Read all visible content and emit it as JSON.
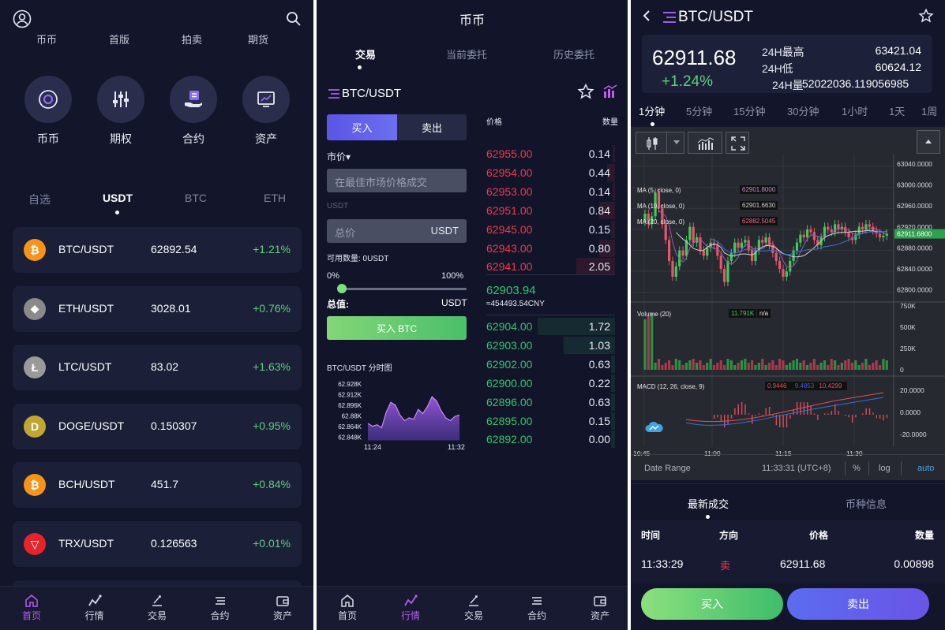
{
  "panel1": {
    "top_partial_labels": [
      "币币",
      "首版",
      "拍卖",
      "期货"
    ],
    "quick_items": [
      {
        "label": "币币",
        "icon": "coin-circle-icon"
      },
      {
        "label": "期权",
        "icon": "sliders-icon"
      },
      {
        "label": "合约",
        "icon": "hand-contract-icon"
      },
      {
        "label": "资产",
        "icon": "monitor-chart-icon"
      }
    ],
    "market_tabs": [
      {
        "label": "自选",
        "active": false
      },
      {
        "label": "USDT",
        "active": true
      },
      {
        "label": "BTC",
        "active": false
      },
      {
        "label": "ETH",
        "active": false
      }
    ],
    "markets": [
      {
        "pair": "BTC/USDT",
        "price": "62892.54",
        "change": "+1.21%",
        "icon_color": "#f7931a",
        "symbol": "₿"
      },
      {
        "pair": "ETH/USDT",
        "price": "3028.01",
        "change": "+0.76%",
        "icon_color": "#8a8a8a",
        "symbol": "◆"
      },
      {
        "pair": "LTC/USDT",
        "price": "83.02",
        "change": "+1.63%",
        "icon_color": "#9a9a9a",
        "symbol": "Ł"
      },
      {
        "pair": "DOGE/USDT",
        "price": "0.150307",
        "change": "+0.95%",
        "icon_color": "#c2a633",
        "symbol": "D"
      },
      {
        "pair": "BCH/USDT",
        "price": "451.7",
        "change": "+0.84%",
        "icon_color": "#f7931a",
        "symbol": "₿"
      },
      {
        "pair": "TRX/USDT",
        "price": "0.126563",
        "change": "+0.01%",
        "icon_color": "#e5242b",
        "symbol": "▽"
      }
    ],
    "tabbar": [
      {
        "label": "首页",
        "icon": "home-icon",
        "active": true
      },
      {
        "label": "行情",
        "icon": "market-icon",
        "active": false
      },
      {
        "label": "交易",
        "icon": "trade-icon",
        "active": false
      },
      {
        "label": "合约",
        "icon": "contract-icon",
        "active": false
      },
      {
        "label": "资产",
        "icon": "wallet-icon",
        "active": false
      }
    ]
  },
  "panel2": {
    "title": "币币",
    "tabs": [
      {
        "label": "交易",
        "active": true
      },
      {
        "label": "当前委托",
        "active": false
      },
      {
        "label": "历史委托",
        "active": false
      }
    ],
    "pair": "BTC/USDT",
    "buy_tab": "买入",
    "sell_tab": "卖出",
    "order_type": "市价▾",
    "price_placeholder": "在最佳市场价格成交",
    "unit_label": "USDT",
    "total_placeholder": "总价",
    "total_unit": "USDT",
    "available_label": "可用数量: 0USDT",
    "slider_min": "0%",
    "slider_max": "100%",
    "slider_value": 0,
    "total_value_label": "总值:",
    "total_value_unit": "USDT",
    "buy_button": "买入 BTC",
    "mini_chart_title": "BTC/USDT 分时图",
    "mini_chart_yticks": [
      "62.928K",
      "62.912K",
      "62.896K",
      "62.88K",
      "62.864K",
      "62.848K"
    ],
    "mini_chart_xticks": [
      "11:24",
      "11:32"
    ],
    "mini_chart_values": [
      62872,
      62868,
      62870,
      62866,
      62888,
      62902,
      62898,
      62884,
      62876,
      62880,
      62878,
      62892,
      62886,
      62896,
      62910,
      62904,
      62890,
      62880,
      62876,
      62882,
      62884
    ],
    "ob_price_header": "价格",
    "ob_qty_header": "数量",
    "asks": [
      {
        "price": "62955.00",
        "qty": "0.14"
      },
      {
        "price": "62954.00",
        "qty": "0.44"
      },
      {
        "price": "62953.00",
        "qty": "0.14"
      },
      {
        "price": "62951.00",
        "qty": "0.84"
      },
      {
        "price": "62945.00",
        "qty": "0.15"
      },
      {
        "price": "62943.00",
        "qty": "0.80"
      },
      {
        "price": "62941.00",
        "qty": "2.05"
      }
    ],
    "ask_depth": [
      0.02,
      0.06,
      0.02,
      0.12,
      0.03,
      0.12,
      0.3
    ],
    "last_price": "62903.94",
    "last_price_cny": "≈454493.54CNY",
    "bids": [
      {
        "price": "62904.00",
        "qty": "1.72"
      },
      {
        "price": "62903.00",
        "qty": "1.03"
      },
      {
        "price": "62902.00",
        "qty": "0.63"
      },
      {
        "price": "62900.00",
        "qty": "0.22"
      },
      {
        "price": "62896.00",
        "qty": "0.63"
      },
      {
        "price": "62895.00",
        "qty": "0.15"
      },
      {
        "price": "62892.00",
        "qty": "0.00"
      }
    ],
    "bid_depth": [
      0.6,
      0.4,
      0.03,
      0.03,
      0.03,
      0.03,
      0.03
    ],
    "tabbar": [
      {
        "label": "首页",
        "icon": "home-icon",
        "active": false
      },
      {
        "label": "行情",
        "icon": "market-icon",
        "active": true
      },
      {
        "label": "交易",
        "icon": "trade-icon",
        "active": false
      },
      {
        "label": "合约",
        "icon": "contract-icon",
        "active": false
      },
      {
        "label": "资产",
        "icon": "wallet-icon",
        "active": false
      }
    ]
  },
  "panel3": {
    "pair": "BTC/USDT",
    "price": "62911.68",
    "change": "+1.24%",
    "high_label": "24H最高",
    "high_value": "63421.04",
    "low_label": "24H低",
    "low_value": "60624.12",
    "vol_label": "24H量",
    "vol_value": "52022036.119056985",
    "periods": [
      {
        "label": "1分钟",
        "active": true
      },
      {
        "label": "5分钟",
        "active": false
      },
      {
        "label": "15分钟",
        "active": false
      },
      {
        "label": "30分钟",
        "active": false
      },
      {
        "label": "1小时",
        "active": false
      },
      {
        "label": "1天",
        "active": false
      },
      {
        "label": "1周",
        "active": false
      }
    ],
    "price_ticks": [
      "63040.0000",
      "63000.0000",
      "62960.0000",
      "62920.0000",
      "62880.0000",
      "62840.0000",
      "62800.0000"
    ],
    "current_tag": "62911.6800",
    "ma5_label": "MA (5, close, 0)",
    "ma5_value": "62901.8000",
    "ma10_label": "MA (10, close, 0)",
    "ma10_value": "62901.6630",
    "ma20_label": "MA (20, close, 0)",
    "ma20_value": "62882.5045",
    "volume_label": "Volume (20)",
    "volume_value": "11.791K",
    "volume_na": "n/a",
    "vol_ticks": [
      "750K",
      "500K",
      "250K",
      "0"
    ],
    "macd_label": "MACD (12, 26, close, 9)",
    "macd_v1": "0.9446",
    "macd_v2": "9.4853",
    "macd_v3": "10.4299",
    "macd_ticks": [
      "20.0000",
      "0.0000",
      "-20.0000"
    ],
    "time_ticks": [
      "10:45",
      "11:00",
      "11:15",
      "11:30"
    ],
    "date_range": "Date Range",
    "clock": "11:33:31 (UTC+8)",
    "opt_pct": "%",
    "opt_log": "log",
    "opt_auto": "auto",
    "tab_trades": "最新成交",
    "tab_info": "币种信息",
    "col_time": "时间",
    "col_side": "方向",
    "col_price": "价格",
    "col_qty": "数量",
    "trades": [
      {
        "time": "11:33:29",
        "side": "卖",
        "price": "62911.68",
        "qty": "0.00898"
      }
    ],
    "buy_button": "买入",
    "sell_button": "卖出"
  }
}
